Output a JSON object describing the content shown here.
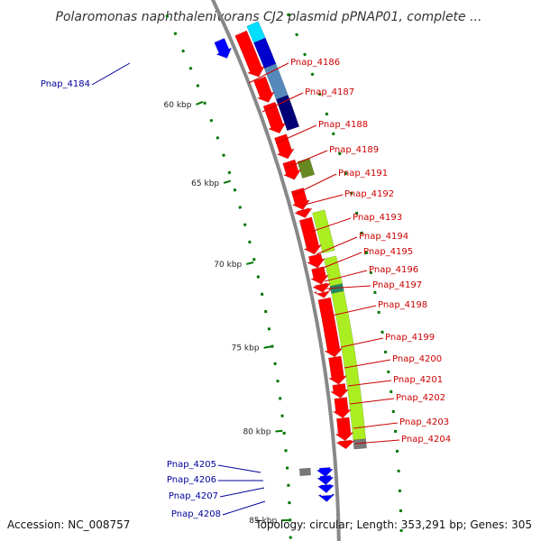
{
  "title": "Polaromonas naphthalenivorans CJ2 plasmid pPNAP01, complete ...",
  "footer": {
    "accession": "Accession: NC_008757",
    "topology": "Topology: circular; Length: 353,291 bp; Genes: 305"
  },
  "colors": {
    "forward_gene": "#ff0000",
    "reverse_gene": "#0000ff",
    "forward_label": "#cc0000",
    "reverse_label": "#000099",
    "backbone": "#888888",
    "tick": "#007700",
    "cog_lime": "#aaee22",
    "cog_cyan": "#00ddff",
    "cog_blue": "#0000cc",
    "cog_steel": "#5588bb",
    "cog_slate": "#6677cc",
    "cog_navy": "#000077",
    "cog_olive": "#668822",
    "cog_teal": "#228866",
    "cog_gray": "#777777"
  },
  "ticks": [
    {
      "label": "60 kbp"
    },
    {
      "label": "65 kbp"
    },
    {
      "label": "70 kbp"
    },
    {
      "label": "75 kbp"
    },
    {
      "label": "80 kbp"
    },
    {
      "label": "85 kbp"
    }
  ],
  "genes_right": [
    {
      "name": "Pnap_4186"
    },
    {
      "name": "Pnap_4187"
    },
    {
      "name": "Pnap_4188"
    },
    {
      "name": "Pnap_4189"
    },
    {
      "name": "Pnap_4191"
    },
    {
      "name": "Pnap_4192"
    },
    {
      "name": "Pnap_4193"
    },
    {
      "name": "Pnap_4194"
    },
    {
      "name": "Pnap_4195"
    },
    {
      "name": "Pnap_4196"
    },
    {
      "name": "Pnap_4197"
    },
    {
      "name": "Pnap_4198"
    },
    {
      "name": "Pnap_4199"
    },
    {
      "name": "Pnap_4200"
    },
    {
      "name": "Pnap_4201"
    },
    {
      "name": "Pnap_4202"
    },
    {
      "name": "Pnap_4203"
    },
    {
      "name": "Pnap_4204"
    }
  ],
  "genes_left": [
    {
      "name": "Pnap_4184"
    },
    {
      "name": "Pnap_4205"
    },
    {
      "name": "Pnap_4206"
    },
    {
      "name": "Pnap_4207"
    },
    {
      "name": "Pnap_4208"
    }
  ]
}
